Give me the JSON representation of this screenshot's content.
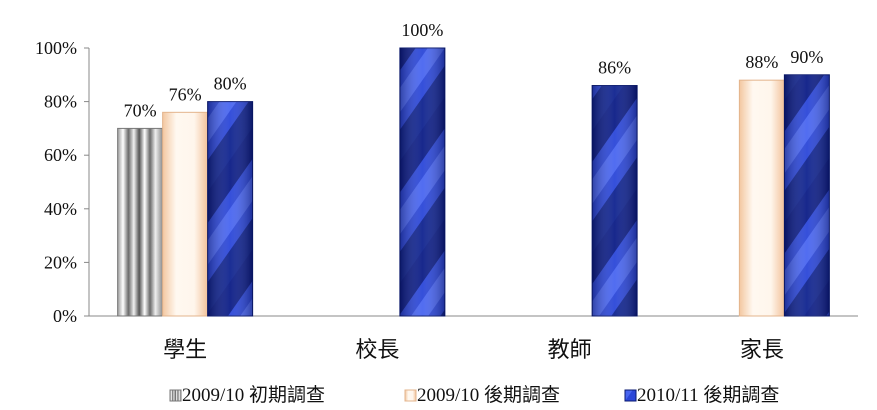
{
  "chart_data": {
    "type": "bar",
    "categories": [
      "學生",
      "校長",
      "教師",
      "家長"
    ],
    "series": [
      {
        "name": "2009/10 初期調查",
        "values": [
          70,
          null,
          null,
          null
        ]
      },
      {
        "name": "2009/10 後期調查",
        "values": [
          76,
          null,
          null,
          88
        ]
      },
      {
        "name": "2010/11 後期調查",
        "values": [
          80,
          100,
          86,
          90
        ]
      }
    ],
    "data_labels": [
      [
        "70%",
        "",
        "",
        ""
      ],
      [
        "76%",
        "",
        "",
        "88%"
      ],
      [
        "80%",
        "100%",
        "86%",
        "90%"
      ]
    ],
    "ylim": [
      0,
      100
    ],
    "y_ticks": [
      0,
      20,
      40,
      60,
      80,
      100
    ],
    "y_tick_labels": [
      "0%",
      "20%",
      "40%",
      "60%",
      "80%",
      "100%"
    ],
    "title": "",
    "xlabel": "",
    "ylabel": "",
    "grid": false,
    "legend_position": "bottom",
    "colors": {
      "series1_light": "#f6f6f6",
      "series1_dark": "#5a5a5a",
      "series2_light": "#fff7ee",
      "series2_dark": "#f4c89f",
      "series3_light": "#2e4bd8",
      "series3_dark": "#0a1e88"
    }
  }
}
